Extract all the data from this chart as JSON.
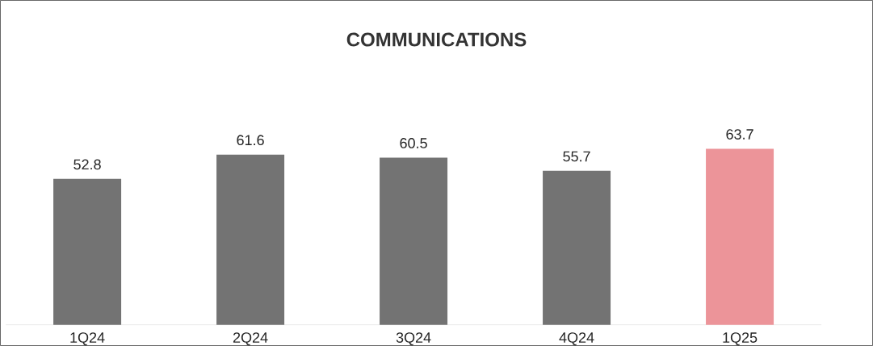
{
  "chart_data": {
    "type": "bar",
    "title": "COMMUNICATIONS",
    "categories": [
      "1Q24",
      "2Q24",
      "3Q24",
      "4Q24",
      "1Q25"
    ],
    "values": [
      52.8,
      61.6,
      60.5,
      55.7,
      63.7
    ],
    "colors": [
      "#737373",
      "#737373",
      "#737373",
      "#737373",
      "#ec9499"
    ],
    "data_labels": true
  }
}
